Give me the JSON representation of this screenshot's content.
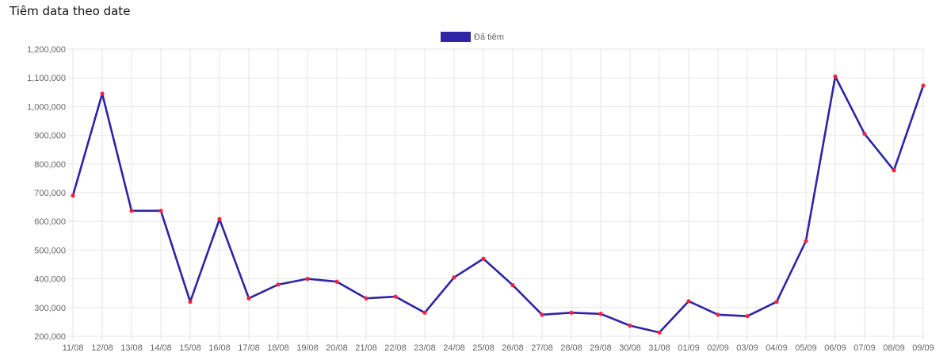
{
  "page": {
    "title": "Tiêm data theo date"
  },
  "colors": {
    "line": "#2d24a6",
    "point": "#ff1f3d",
    "grid": "#e6e6e6",
    "tick_text": "#666666"
  },
  "chart_data": {
    "type": "line",
    "title": "",
    "xlabel": "",
    "ylabel": "",
    "legend": {
      "placement": "top-center",
      "entries": [
        "Đã tiêm"
      ]
    },
    "grid": true,
    "ylim": [
      200000,
      1200000
    ],
    "y_ticks": [
      "1,200,000",
      "1,100,000",
      "1,000,000",
      "900,000",
      "800,000",
      "700,000",
      "600,000",
      "500,000",
      "400,000",
      "300,000",
      "200,000"
    ],
    "y_tick_values": [
      1200000,
      1100000,
      1000000,
      900000,
      800000,
      700000,
      600000,
      500000,
      400000,
      300000,
      200000
    ],
    "categories": [
      "11/08",
      "12/08",
      "13/08",
      "14/08",
      "15/08",
      "16/08",
      "17/08",
      "18/08",
      "19/08",
      "20/08",
      "21/08",
      "22/08",
      "23/08",
      "24/08",
      "25/08",
      "26/08",
      "27/08",
      "28/08",
      "29/08",
      "30/08",
      "31/08",
      "01/09",
      "02/09",
      "03/09",
      "04/09",
      "05/09",
      "06/09",
      "07/09",
      "08/09",
      "09/09"
    ],
    "series": [
      {
        "name": "Đã tiêm",
        "values": [
          690000,
          1045000,
          637000,
          637000,
          320000,
          608000,
          332000,
          380000,
          400000,
          390000,
          332000,
          338000,
          282000,
          405000,
          470000,
          378000,
          275000,
          282000,
          278000,
          237000,
          213000,
          322000,
          275000,
          270000,
          320000,
          532000,
          1105000,
          905000,
          778000,
          1073000
        ]
      }
    ]
  }
}
